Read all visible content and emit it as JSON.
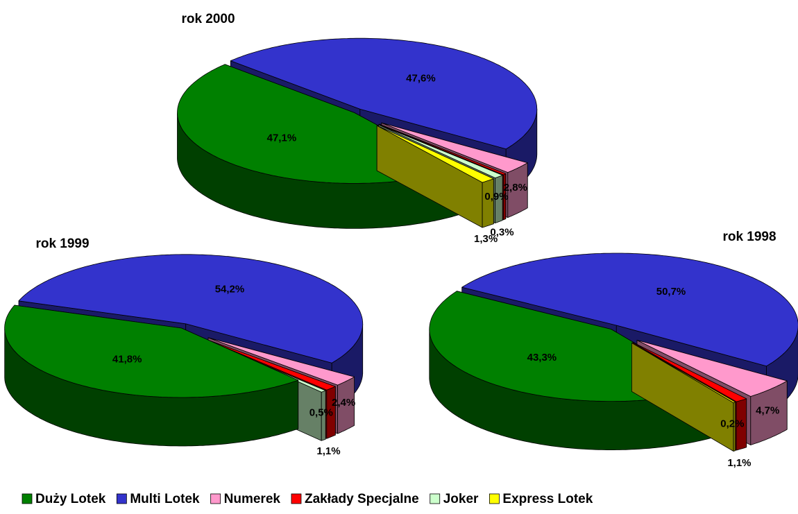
{
  "chart_data": [
    {
      "type": "pie",
      "title": "rok 2000",
      "categories": [
        "Duży Lotek",
        "Multi Lotek",
        "Numerek",
        "Zakłady Specjalne",
        "Joker",
        "Express Lotek"
      ],
      "values": [
        47.1,
        47.6,
        2.8,
        0.3,
        0.9,
        1.3
      ],
      "value_labels": [
        "47,1%",
        "47,6%",
        "2,8%",
        "0,3%",
        "0,9%",
        "1,3%"
      ],
      "colors": [
        "#008000",
        "#3333cc",
        "#ff99cc",
        "#ff0000",
        "#ccffcc",
        "#ffff00"
      ]
    },
    {
      "type": "pie",
      "title": "rok 1999",
      "categories": [
        "Duży Lotek",
        "Multi Lotek",
        "Numerek",
        "Zakłady Specjalne",
        "Joker",
        "Express Lotek"
      ],
      "values": [
        41.8,
        54.2,
        2.4,
        1.1,
        0.5,
        null
      ],
      "value_labels": [
        "41,8%",
        "54,2%",
        "2,4%",
        "1,1%",
        "0,5%",
        null
      ],
      "colors": [
        "#008000",
        "#3333cc",
        "#ff99cc",
        "#ff0000",
        "#ccffcc",
        "#ffff00"
      ]
    },
    {
      "type": "pie",
      "title": "rok 1998",
      "categories": [
        "Duży Lotek",
        "Multi Lotek",
        "Numerek",
        "Zakłady Specjalne",
        "Joker",
        "Express Lotek"
      ],
      "values": [
        43.3,
        50.7,
        4.7,
        1.1,
        null,
        0.2
      ],
      "value_labels": [
        "43,3%",
        "50,7%",
        "4,7%",
        "1,1%",
        null,
        "0,2%"
      ],
      "colors": [
        "#008000",
        "#3333cc",
        "#ff99cc",
        "#ff0000",
        "#ccffcc",
        "#ffff00"
      ]
    }
  ]
}
